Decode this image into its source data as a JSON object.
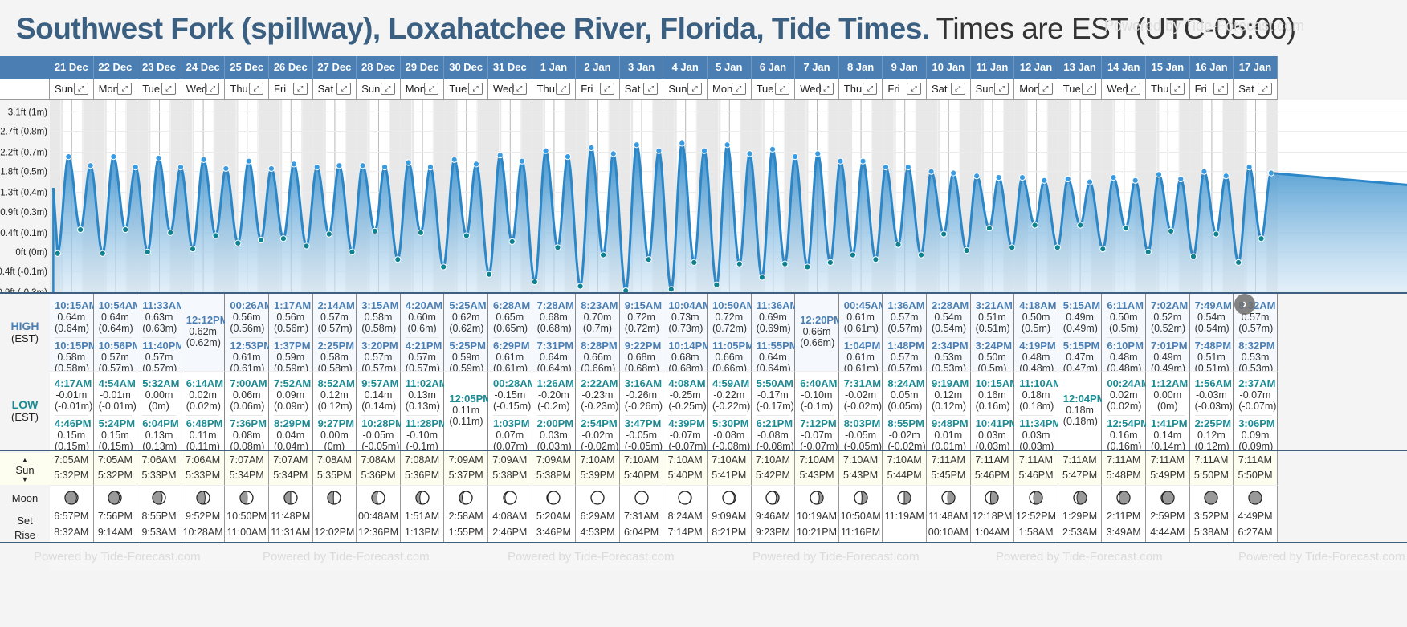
{
  "title": {
    "main": "Southwest Fork (spillway), Loxahatchee River, Florida, Tide Times.",
    "timezone": "Times are EST (UTC-05:00)"
  },
  "watermark": "Powered by Tide-Forecast.com",
  "icons": {
    "expand": "expand-icon",
    "next": "chevron-right-icon",
    "sun_up": "▲",
    "sun_down": "▼"
  },
  "colors": {
    "header_blue": "#4b7fb3",
    "title_blue": "#3a5f80",
    "high_text": "#4b7fb3",
    "low_text": "#1a8a93",
    "curve": "#2b87c8",
    "high_dot": "#3a9be0",
    "low_dot": "#0e8290",
    "sun_row_bg": "#fdfdf0"
  },
  "labels": {
    "high": "HIGH",
    "low": "LOW",
    "est": "(EST)",
    "sun": "Sun",
    "moon": "Moon",
    "set": "Set",
    "rise": "Rise"
  },
  "chart_data": {
    "type": "area",
    "title": "Southwest Fork (spillway), Loxahatchee River, Florida, Tide Times",
    "ylabel": "Tide height",
    "yticks": [
      "3.1ft (1m)",
      "2.7ft (0.8m)",
      "2.2ft (0.7m)",
      "1.8ft (0.5m)",
      "1.3ft (0.4m)",
      "0.9ft (0.3m)",
      "0.4ft (0.1m)",
      "0ft (0m)",
      "-0.4ft (-0.1m)",
      "-0.9ft (-0.3m)"
    ],
    "ytick_values_m": [
      0.94,
      0.81,
      0.67,
      0.54,
      0.4,
      0.27,
      0.13,
      0.0,
      -0.13,
      -0.27
    ],
    "ylim_m": [
      -0.27,
      0.98
    ],
    "x_unit": "days from 21 Dec 00:00",
    "xlim_days": [
      0,
      27.6
    ],
    "grid": true,
    "note": "Series of alternating high/low tide extremes; heights in meters."
  },
  "days": [
    {
      "date": "21 Dec",
      "dow": "Sun",
      "high": [
        {
          "t": "10:15AM",
          "v": "0.64m",
          "p": "(0.64m)"
        },
        {
          "t": "10:15PM",
          "v": "0.58m",
          "p": "(0.58m)"
        }
      ],
      "low": [
        {
          "t": "4:17AM",
          "v": "-0.01m",
          "p": "(-0.01m)"
        },
        {
          "t": "4:46PM",
          "v": "0.15m",
          "p": "(0.15m)"
        }
      ],
      "sunrise": "7:05AM",
      "sunset": "5:32PM",
      "moon_phase": 0.9,
      "moon_set": "6:57PM",
      "moon_rise": "8:32AM"
    },
    {
      "date": "22 Dec",
      "dow": "Mon",
      "high": [
        {
          "t": "10:54AM",
          "v": "0.64m",
          "p": "(0.64m)"
        },
        {
          "t": "10:56PM",
          "v": "0.57m",
          "p": "(0.57m)"
        }
      ],
      "low": [
        {
          "t": "4:54AM",
          "v": "-0.01m",
          "p": "(-0.01m)"
        },
        {
          "t": "5:24PM",
          "v": "0.15m",
          "p": "(0.15m)"
        }
      ],
      "sunrise": "7:05AM",
      "sunset": "5:32PM",
      "moon_phase": 0.85,
      "moon_set": "7:56PM",
      "moon_rise": "9:14AM"
    },
    {
      "date": "23 Dec",
      "dow": "Tue",
      "high": [
        {
          "t": "11:33AM",
          "v": "0.63m",
          "p": "(0.63m)"
        },
        {
          "t": "11:40PM",
          "v": "0.57m",
          "p": "(0.57m)"
        }
      ],
      "low": [
        {
          "t": "5:32AM",
          "v": "0.00m",
          "p": "(0m)"
        },
        {
          "t": "6:04PM",
          "v": "0.13m",
          "p": "(0.13m)"
        }
      ],
      "sunrise": "7:06AM",
      "sunset": "5:33PM",
      "moon_phase": 0.75,
      "moon_set": "8:55PM",
      "moon_rise": "9:53AM"
    },
    {
      "date": "24 Dec",
      "dow": "Wed",
      "high": [
        {
          "t": "12:12PM",
          "v": "0.62m",
          "p": "(0.62m)"
        }
      ],
      "low": [
        {
          "t": "6:14AM",
          "v": "0.02m",
          "p": "(0.02m)"
        },
        {
          "t": "6:48PM",
          "v": "0.11m",
          "p": "(0.11m)"
        }
      ],
      "sunrise": "7:06AM",
      "sunset": "5:33PM",
      "moon_phase": 0.65,
      "moon_set": "9:52PM",
      "moon_rise": "10:28AM"
    },
    {
      "date": "25 Dec",
      "dow": "Thu",
      "high": [
        {
          "t": "00:26AM",
          "v": "0.56m",
          "p": "(0.56m)"
        },
        {
          "t": "12:53PM",
          "v": "0.61m",
          "p": "(0.61m)"
        }
      ],
      "low": [
        {
          "t": "7:00AM",
          "v": "0.06m",
          "p": "(0.06m)"
        },
        {
          "t": "7:36PM",
          "v": "0.08m",
          "p": "(0.08m)"
        }
      ],
      "sunrise": "7:07AM",
      "sunset": "5:34PM",
      "moon_phase": 0.55,
      "moon_set": "10:50PM",
      "moon_rise": "11:00AM"
    },
    {
      "date": "26 Dec",
      "dow": "Fri",
      "high": [
        {
          "t": "1:17AM",
          "v": "0.56m",
          "p": "(0.56m)"
        },
        {
          "t": "1:37PM",
          "v": "0.59m",
          "p": "(0.59m)"
        }
      ],
      "low": [
        {
          "t": "7:52AM",
          "v": "0.09m",
          "p": "(0.09m)"
        },
        {
          "t": "8:29PM",
          "v": "0.04m",
          "p": "(0.04m)"
        }
      ],
      "sunrise": "7:07AM",
      "sunset": "5:34PM",
      "moon_phase": 0.5,
      "moon_set": "11:48PM",
      "moon_rise": "11:31AM"
    },
    {
      "date": "27 Dec",
      "dow": "Sat",
      "high": [
        {
          "t": "2:14AM",
          "v": "0.57m",
          "p": "(0.57m)"
        },
        {
          "t": "2:25PM",
          "v": "0.58m",
          "p": "(0.58m)"
        }
      ],
      "low": [
        {
          "t": "8:52AM",
          "v": "0.12m",
          "p": "(0.12m)"
        },
        {
          "t": "9:27PM",
          "v": "0.00m",
          "p": "(0m)"
        }
      ],
      "sunrise": "7:08AM",
      "sunset": "5:35PM",
      "moon_phase": 0.45,
      "moon_set": "",
      "moon_rise": "12:02PM"
    },
    {
      "date": "28 Dec",
      "dow": "Sun",
      "high": [
        {
          "t": "3:15AM",
          "v": "0.58m",
          "p": "(0.58m)"
        },
        {
          "t": "3:20PM",
          "v": "0.57m",
          "p": "(0.57m)"
        }
      ],
      "low": [
        {
          "t": "9:57AM",
          "v": "0.14m",
          "p": "(0.14m)"
        },
        {
          "t": "10:28PM",
          "v": "-0.05m",
          "p": "(-0.05m)"
        }
      ],
      "sunrise": "7:08AM",
      "sunset": "5:36PM",
      "moon_phase": 0.4,
      "moon_set": "00:48AM",
      "moon_rise": "12:36PM"
    },
    {
      "date": "29 Dec",
      "dow": "Mon",
      "high": [
        {
          "t": "4:20AM",
          "v": "0.60m",
          "p": "(0.6m)"
        },
        {
          "t": "4:21PM",
          "v": "0.57m",
          "p": "(0.57m)"
        }
      ],
      "low": [
        {
          "t": "11:02AM",
          "v": "0.13m",
          "p": "(0.13m)"
        },
        {
          "t": "11:28PM",
          "v": "-0.10m",
          "p": "(-0.1m)"
        }
      ],
      "sunrise": "7:08AM",
      "sunset": "5:36PM",
      "moon_phase": 0.3,
      "moon_set": "1:51AM",
      "moon_rise": "1:13PM"
    },
    {
      "date": "30 Dec",
      "dow": "Tue",
      "high": [
        {
          "t": "5:25AM",
          "v": "0.62m",
          "p": "(0.62m)"
        },
        {
          "t": "5:25PM",
          "v": "0.59m",
          "p": "(0.59m)"
        }
      ],
      "low": [
        {
          "t": "12:05PM",
          "v": "0.11m",
          "p": "(0.11m)"
        }
      ],
      "sunrise": "7:09AM",
      "sunset": "5:37PM",
      "moon_phase": 0.22,
      "moon_set": "2:58AM",
      "moon_rise": "1:55PM"
    },
    {
      "date": "31 Dec",
      "dow": "Wed",
      "high": [
        {
          "t": "6:28AM",
          "v": "0.65m",
          "p": "(0.65m)"
        },
        {
          "t": "6:29PM",
          "v": "0.61m",
          "p": "(0.61m)"
        }
      ],
      "low": [
        {
          "t": "00:28AM",
          "v": "-0.15m",
          "p": "(-0.15m)"
        },
        {
          "t": "1:03PM",
          "v": "0.07m",
          "p": "(0.07m)"
        }
      ],
      "sunrise": "7:09AM",
      "sunset": "5:38PM",
      "moon_phase": 0.12,
      "moon_set": "4:08AM",
      "moon_rise": "2:46PM"
    },
    {
      "date": "1 Jan",
      "dow": "Thu",
      "high": [
        {
          "t": "7:28AM",
          "v": "0.68m",
          "p": "(0.68m)"
        },
        {
          "t": "7:31PM",
          "v": "0.64m",
          "p": "(0.64m)"
        }
      ],
      "low": [
        {
          "t": "1:26AM",
          "v": "-0.20m",
          "p": "(-0.2m)"
        },
        {
          "t": "2:00PM",
          "v": "0.03m",
          "p": "(0.03m)"
        }
      ],
      "sunrise": "7:09AM",
      "sunset": "5:38PM",
      "moon_phase": 0.06,
      "moon_set": "5:20AM",
      "moon_rise": "3:46PM"
    },
    {
      "date": "2 Jan",
      "dow": "Fri",
      "high": [
        {
          "t": "8:23AM",
          "v": "0.70m",
          "p": "(0.7m)"
        },
        {
          "t": "8:28PM",
          "v": "0.66m",
          "p": "(0.66m)"
        }
      ],
      "low": [
        {
          "t": "2:22AM",
          "v": "-0.23m",
          "p": "(-0.23m)"
        },
        {
          "t": "2:54PM",
          "v": "-0.02m",
          "p": "(-0.02m)"
        }
      ],
      "sunrise": "7:10AM",
      "sunset": "5:39PM",
      "moon_phase": 0.0,
      "moon_set": "6:29AM",
      "moon_rise": "4:53PM"
    },
    {
      "date": "3 Jan",
      "dow": "Sat",
      "high": [
        {
          "t": "9:15AM",
          "v": "0.72m",
          "p": "(0.72m)"
        },
        {
          "t": "9:22PM",
          "v": "0.68m",
          "p": "(0.68m)"
        }
      ],
      "low": [
        {
          "t": "3:16AM",
          "v": "-0.26m",
          "p": "(-0.26m)"
        },
        {
          "t": "3:47PM",
          "v": "-0.05m",
          "p": "(-0.05m)"
        }
      ],
      "sunrise": "7:10AM",
      "sunset": "5:40PM",
      "moon_phase": 0.0,
      "moon_set": "7:31AM",
      "moon_rise": "6:04PM"
    },
    {
      "date": "4 Jan",
      "dow": "Sun",
      "high": [
        {
          "t": "10:04AM",
          "v": "0.73m",
          "p": "(0.73m)"
        },
        {
          "t": "10:14PM",
          "v": "0.68m",
          "p": "(0.68m)"
        }
      ],
      "low": [
        {
          "t": "4:08AM",
          "v": "-0.25m",
          "p": "(-0.25m)"
        },
        {
          "t": "4:39PM",
          "v": "-0.07m",
          "p": "(-0.07m)"
        }
      ],
      "sunrise": "7:10AM",
      "sunset": "5:40PM",
      "moon_phase": -0.04,
      "moon_set": "8:24AM",
      "moon_rise": "7:14PM"
    },
    {
      "date": "5 Jan",
      "dow": "Mon",
      "high": [
        {
          "t": "10:50AM",
          "v": "0.72m",
          "p": "(0.72m)"
        },
        {
          "t": "11:05PM",
          "v": "0.66m",
          "p": "(0.66m)"
        }
      ],
      "low": [
        {
          "t": "4:59AM",
          "v": "-0.22m",
          "p": "(-0.22m)"
        },
        {
          "t": "5:30PM",
          "v": "-0.08m",
          "p": "(-0.08m)"
        }
      ],
      "sunrise": "7:10AM",
      "sunset": "5:41PM",
      "moon_phase": -0.1,
      "moon_set": "9:09AM",
      "moon_rise": "8:21PM"
    },
    {
      "date": "6 Jan",
      "dow": "Tue",
      "high": [
        {
          "t": "11:36AM",
          "v": "0.69m",
          "p": "(0.69m)"
        },
        {
          "t": "11:55PM",
          "v": "0.64m",
          "p": "(0.64m)"
        }
      ],
      "low": [
        {
          "t": "5:50AM",
          "v": "-0.17m",
          "p": "(-0.17m)"
        },
        {
          "t": "6:21PM",
          "v": "-0.08m",
          "p": "(-0.08m)"
        }
      ],
      "sunrise": "7:10AM",
      "sunset": "5:42PM",
      "moon_phase": -0.2,
      "moon_set": "9:46AM",
      "moon_rise": "9:23PM"
    },
    {
      "date": "7 Jan",
      "dow": "Wed",
      "high": [
        {
          "t": "12:20PM",
          "v": "0.66m",
          "p": "(0.66m)"
        }
      ],
      "low": [
        {
          "t": "6:40AM",
          "v": "-0.10m",
          "p": "(-0.1m)"
        },
        {
          "t": "7:12PM",
          "v": "-0.07m",
          "p": "(-0.07m)"
        }
      ],
      "sunrise": "7:10AM",
      "sunset": "5:43PM",
      "moon_phase": -0.3,
      "moon_set": "10:19AM",
      "moon_rise": "10:21PM"
    },
    {
      "date": "8 Jan",
      "dow": "Thu",
      "high": [
        {
          "t": "00:45AM",
          "v": "0.61m",
          "p": "(0.61m)"
        },
        {
          "t": "1:04PM",
          "v": "0.61m",
          "p": "(0.61m)"
        }
      ],
      "low": [
        {
          "t": "7:31AM",
          "v": "-0.02m",
          "p": "(-0.02m)"
        },
        {
          "t": "8:03PM",
          "v": "-0.05m",
          "p": "(-0.05m)"
        }
      ],
      "sunrise": "7:10AM",
      "sunset": "5:43PM",
      "moon_phase": -0.42,
      "moon_set": "10:50AM",
      "moon_rise": "11:16PM"
    },
    {
      "date": "9 Jan",
      "dow": "Fri",
      "high": [
        {
          "t": "1:36AM",
          "v": "0.57m",
          "p": "(0.57m)"
        },
        {
          "t": "1:48PM",
          "v": "0.57m",
          "p": "(0.57m)"
        }
      ],
      "low": [
        {
          "t": "8:24AM",
          "v": "0.05m",
          "p": "(0.05m)"
        },
        {
          "t": "8:55PM",
          "v": "-0.02m",
          "p": "(-0.02m)"
        }
      ],
      "sunrise": "7:10AM",
      "sunset": "5:44PM",
      "moon_phase": -0.5,
      "moon_set": "11:19AM",
      "moon_rise": ""
    },
    {
      "date": "10 Jan",
      "dow": "Sat",
      "high": [
        {
          "t": "2:28AM",
          "v": "0.54m",
          "p": "(0.54m)"
        },
        {
          "t": "2:34PM",
          "v": "0.53m",
          "p": "(0.53m)"
        }
      ],
      "low": [
        {
          "t": "9:19AM",
          "v": "0.12m",
          "p": "(0.12m)"
        },
        {
          "t": "9:48PM",
          "v": "0.01m",
          "p": "(0.01m)"
        }
      ],
      "sunrise": "7:11AM",
      "sunset": "5:45PM",
      "moon_phase": -0.55,
      "moon_set": "11:48AM",
      "moon_rise": "00:10AM"
    },
    {
      "date": "11 Jan",
      "dow": "Sun",
      "high": [
        {
          "t": "3:21AM",
          "v": "0.51m",
          "p": "(0.51m)"
        },
        {
          "t": "3:24PM",
          "v": "0.50m",
          "p": "(0.5m)"
        }
      ],
      "low": [
        {
          "t": "10:15AM",
          "v": "0.16m",
          "p": "(0.16m)"
        },
        {
          "t": "10:41PM",
          "v": "0.03m",
          "p": "(0.03m)"
        }
      ],
      "sunrise": "7:11AM",
      "sunset": "5:46PM",
      "moon_phase": -0.6,
      "moon_set": "12:18PM",
      "moon_rise": "1:04AM"
    },
    {
      "date": "12 Jan",
      "dow": "Mon",
      "high": [
        {
          "t": "4:18AM",
          "v": "0.50m",
          "p": "(0.5m)"
        },
        {
          "t": "4:19PM",
          "v": "0.48m",
          "p": "(0.48m)"
        }
      ],
      "low": [
        {
          "t": "11:10AM",
          "v": "0.18m",
          "p": "(0.18m)"
        },
        {
          "t": "11:34PM",
          "v": "0.03m",
          "p": "(0.03m)"
        }
      ],
      "sunrise": "7:11AM",
      "sunset": "5:46PM",
      "moon_phase": -0.68,
      "moon_set": "12:52PM",
      "moon_rise": "1:58AM"
    },
    {
      "date": "13 Jan",
      "dow": "Tue",
      "high": [
        {
          "t": "5:15AM",
          "v": "0.49m",
          "p": "(0.49m)"
        },
        {
          "t": "5:15PM",
          "v": "0.47m",
          "p": "(0.47m)"
        }
      ],
      "low": [
        {
          "t": "12:04PM",
          "v": "0.18m",
          "p": "(0.18m)"
        }
      ],
      "sunrise": "7:11AM",
      "sunset": "5:47PM",
      "moon_phase": -0.75,
      "moon_set": "1:29PM",
      "moon_rise": "2:53AM"
    },
    {
      "date": "14 Jan",
      "dow": "Wed",
      "high": [
        {
          "t": "6:11AM",
          "v": "0.50m",
          "p": "(0.5m)"
        },
        {
          "t": "6:10PM",
          "v": "0.48m",
          "p": "(0.48m)"
        }
      ],
      "low": [
        {
          "t": "00:24AM",
          "v": "0.02m",
          "p": "(0.02m)"
        },
        {
          "t": "12:54PM",
          "v": "0.16m",
          "p": "(0.16m)"
        }
      ],
      "sunrise": "7:11AM",
      "sunset": "5:48PM",
      "moon_phase": -0.85,
      "moon_set": "2:11PM",
      "moon_rise": "3:49AM"
    },
    {
      "date": "15 Jan",
      "dow": "Thu",
      "high": [
        {
          "t": "7:02AM",
          "v": "0.52m",
          "p": "(0.52m)"
        },
        {
          "t": "7:01PM",
          "v": "0.49m",
          "p": "(0.49m)"
        }
      ],
      "low": [
        {
          "t": "1:12AM",
          "v": "0.00m",
          "p": "(0m)"
        },
        {
          "t": "1:41PM",
          "v": "0.14m",
          "p": "(0.14m)"
        }
      ],
      "sunrise": "7:11AM",
      "sunset": "5:49PM",
      "moon_phase": -0.92,
      "moon_set": "2:59PM",
      "moon_rise": "4:44AM"
    },
    {
      "date": "16 Jan",
      "dow": "Fri",
      "high": [
        {
          "t": "7:49AM",
          "v": "0.54m",
          "p": "(0.54m)"
        },
        {
          "t": "7:48PM",
          "v": "0.51m",
          "p": "(0.51m)"
        }
      ],
      "low": [
        {
          "t": "1:56AM",
          "v": "-0.03m",
          "p": "(-0.03m)"
        },
        {
          "t": "2:25PM",
          "v": "0.12m",
          "p": "(0.12m)"
        }
      ],
      "sunrise": "7:11AM",
      "sunset": "5:50PM",
      "moon_phase": -0.98,
      "moon_set": "3:52PM",
      "moon_rise": "5:38AM"
    },
    {
      "date": "17 Jan",
      "dow": "Sat",
      "high": [
        {
          "t": "8:32AM",
          "v": "0.57m",
          "p": "(0.57m)"
        },
        {
          "t": "8:32PM",
          "v": "0.53m",
          "p": "(0.53m)"
        }
      ],
      "low": [
        {
          "t": "2:37AM",
          "v": "-0.07m",
          "p": "(-0.07m)"
        },
        {
          "t": "3:06PM",
          "v": "0.09m",
          "p": "(0.09m)"
        }
      ],
      "sunrise": "7:11AM",
      "sunset": "5:50PM",
      "moon_phase": -1.0,
      "moon_set": "4:49PM",
      "moon_rise": "6:27AM"
    }
  ]
}
